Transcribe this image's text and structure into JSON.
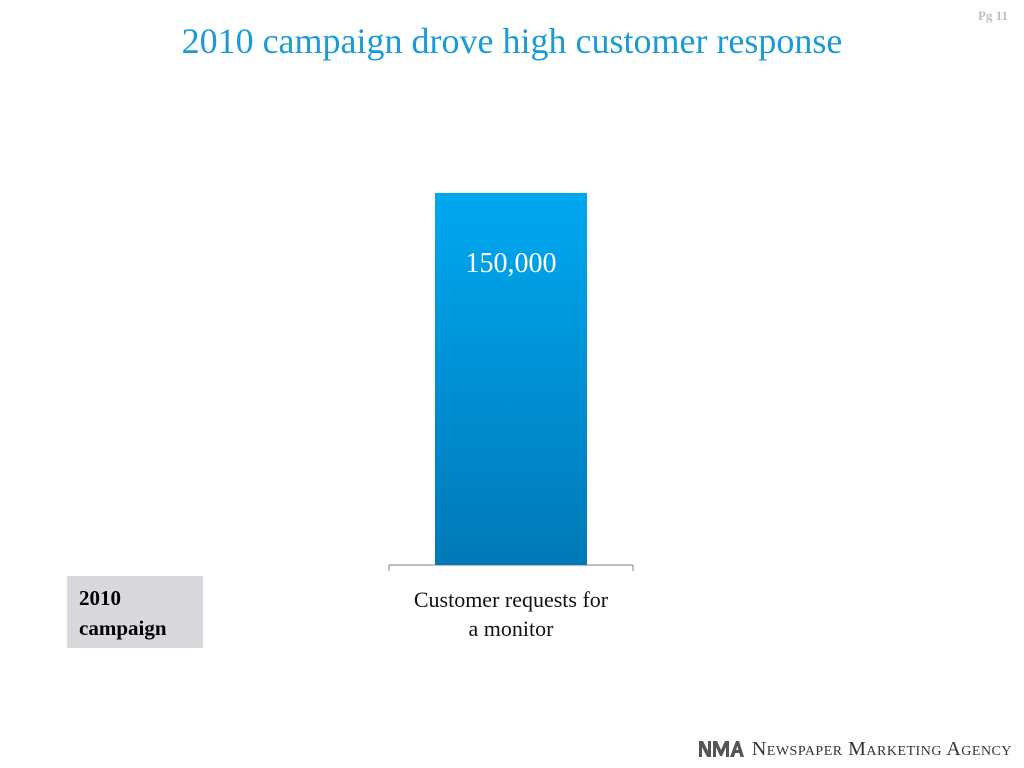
{
  "slide": {
    "page_number": "Pg 11",
    "title": "2010 campaign drove high customer response",
    "campaign_label": "2010 campaign",
    "brand_mark": "NMA",
    "brand_name": "Newspaper Marketing Agency"
  },
  "chart_data": {
    "type": "bar",
    "categories": [
      "Customer requests for a monitor"
    ],
    "values": [
      150000
    ],
    "data_labels": [
      "150,000"
    ],
    "colors": {
      "bar_top": "#00a8f0",
      "bar_bottom": "#0079b8",
      "label": "#ffffff",
      "axis": "#7f7f7f"
    },
    "grid": false,
    "ylim": [
      0,
      150000
    ]
  }
}
